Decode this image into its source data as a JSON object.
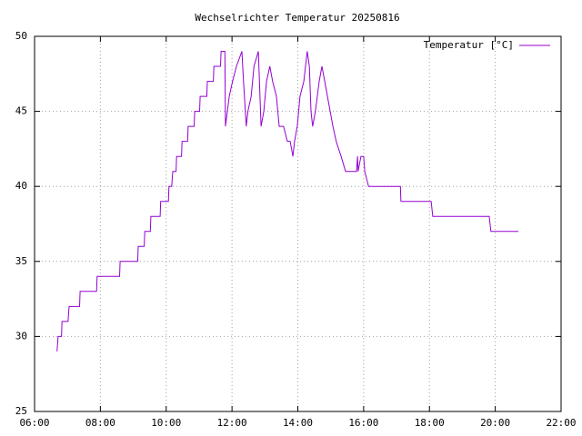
{
  "chart_data": {
    "type": "line",
    "title": "Wechselrichter Temperatur 20250816",
    "series": [
      {
        "name": "Temperatur [°C]",
        "color": "#9400d3",
        "x": [
          "06:41",
          "06:43",
          "06:49",
          "06:50",
          "07:01",
          "07:03",
          "07:22",
          "07:23",
          "07:53",
          "07:54",
          "08:35",
          "08:36",
          "09:08",
          "09:09",
          "09:20",
          "09:21",
          "09:31",
          "09:32",
          "09:49",
          "09:50",
          "10:04",
          "10:05",
          "10:10",
          "10:12",
          "10:18",
          "10:19",
          "10:28",
          "10:29",
          "10:39",
          "10:40",
          "10:51",
          "10:52",
          "11:01",
          "11:02",
          "11:14",
          "11:15",
          "11:26",
          "11:27",
          "11:39",
          "11:40",
          "11:47",
          "11:48",
          "11:55",
          "12:01",
          "12:08",
          "12:18",
          "12:21",
          "12:26",
          "12:29",
          "12:35",
          "12:40",
          "12:48",
          "12:53",
          "12:58",
          "13:03",
          "13:09",
          "13:14",
          "13:21",
          "13:26",
          "13:34",
          "13:41",
          "13:46",
          "13:51",
          "13:54",
          "13:59",
          "14:04",
          "14:11",
          "14:17",
          "14:21",
          "14:24",
          "14:27",
          "14:32",
          "14:39",
          "14:44",
          "14:49",
          "14:54",
          "14:59",
          "15:04",
          "15:10",
          "15:19",
          "15:27",
          "15:47",
          "15:49",
          "15:50",
          "15:55",
          "16:00",
          "16:02",
          "16:09",
          "17:07",
          "17:08",
          "18:03",
          "18:06",
          "19:49",
          "19:52",
          "20:42"
        ],
        "values": [
          29,
          30,
          30,
          31,
          31,
          32,
          32,
          33,
          33,
          34,
          34,
          35,
          35,
          36,
          36,
          37,
          37,
          38,
          38,
          39,
          39,
          40,
          40,
          41,
          41,
          42,
          42,
          43,
          43,
          44,
          44,
          45,
          45,
          46,
          46,
          47,
          47,
          48,
          48,
          49,
          49,
          44,
          46,
          47,
          48,
          49,
          47,
          44,
          45,
          46,
          48,
          49,
          44,
          45,
          47,
          48,
          47,
          46,
          44,
          44,
          43,
          43,
          42,
          43,
          44,
          46,
          47,
          49,
          48,
          45,
          44,
          45,
          47,
          48,
          47,
          46,
          45,
          44,
          43,
          42,
          41,
          41,
          42,
          41,
          42,
          42,
          41,
          40,
          40,
          39,
          39,
          38,
          38,
          37,
          37
        ]
      }
    ],
    "xlim": [
      "06:00",
      "22:00"
    ],
    "xticks": [
      "06:00",
      "08:00",
      "10:00",
      "12:00",
      "14:00",
      "16:00",
      "18:00",
      "20:00",
      "22:00"
    ],
    "ylim": [
      25,
      50
    ],
    "yticks": [
      25,
      30,
      35,
      40,
      45,
      50
    ],
    "grid": true,
    "legend": "top-right"
  }
}
